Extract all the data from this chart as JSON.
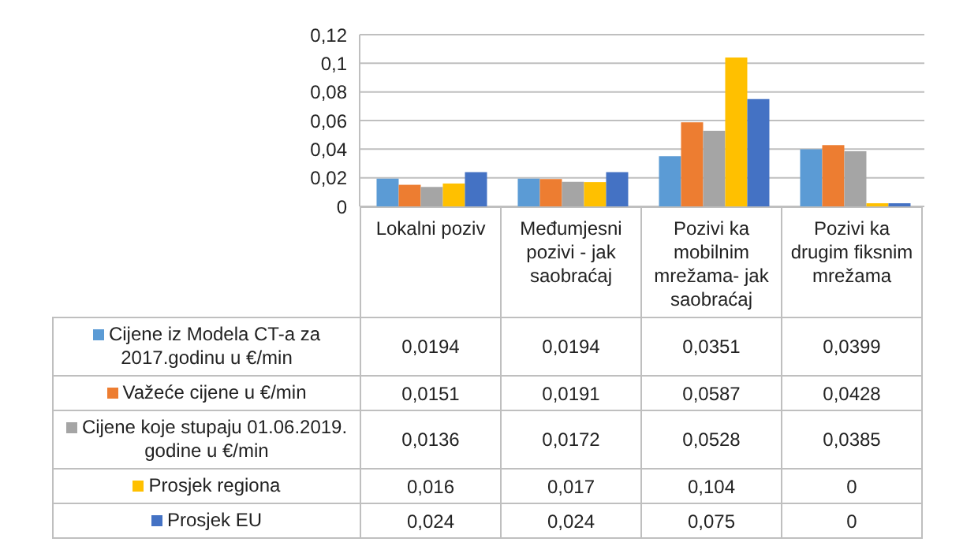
{
  "chart_data": {
    "type": "bar",
    "categories": [
      "Lokalni poziv",
      "Međumjesni pozivi - jak saobraćaj",
      "Pozivi ka mobilnim mrežama- jak saobraćaj",
      "Pozivi ka drugim fiksnim mrežama"
    ],
    "series": [
      {
        "name": "Cijene iz Modela CT-a  za 2017.godinu u €/min",
        "color": "#5b9bd5",
        "values": [
          0.0194,
          0.0194,
          0.0351,
          0.0399
        ],
        "value_labels": [
          "0,0194",
          "0,0194",
          "0,0351",
          "0,0399"
        ]
      },
      {
        "name": "Važeće cijene u €/min",
        "color": "#ed7d31",
        "values": [
          0.0151,
          0.0191,
          0.0587,
          0.0428
        ],
        "value_labels": [
          "0,0151",
          "0,0191",
          "0,0587",
          "0,0428"
        ]
      },
      {
        "name": "Cijene koje stupaju  01.06.2019. godine u €/min",
        "color": "#a5a5a5",
        "values": [
          0.0136,
          0.0172,
          0.0528,
          0.0385
        ],
        "value_labels": [
          "0,0136",
          "0,0172",
          "0,0528",
          "0,0385"
        ]
      },
      {
        "name": "Prosjek regiona",
        "color": "#ffc000",
        "values": [
          0.016,
          0.017,
          0.104,
          0
        ],
        "value_labels": [
          "0,016",
          "0,017",
          "0,104",
          "0"
        ]
      },
      {
        "name": "Prosjek EU",
        "color": "#4472c4",
        "values": [
          0.024,
          0.024,
          0.075,
          0
        ],
        "value_labels": [
          "0,024",
          "0,024",
          "0,075",
          "0"
        ]
      }
    ],
    "ylim": [
      0,
      0.12
    ],
    "yticks": [
      {
        "value": 0,
        "label": "0"
      },
      {
        "value": 0.02,
        "label": "0,02"
      },
      {
        "value": 0.04,
        "label": "0,04"
      },
      {
        "value": 0.06,
        "label": "0,06"
      },
      {
        "value": 0.08,
        "label": "0,08"
      },
      {
        "value": 0.1,
        "label": "0,1"
      },
      {
        "value": 0.12,
        "label": "0,12"
      }
    ],
    "grid": "y",
    "legend": "bottom"
  }
}
